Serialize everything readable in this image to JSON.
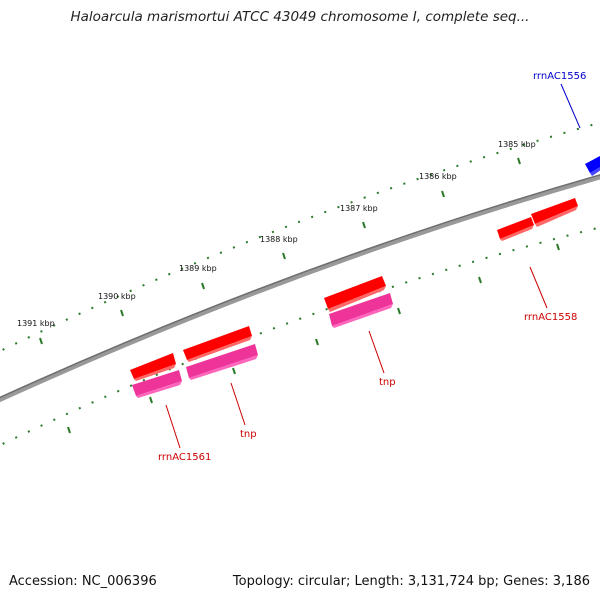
{
  "title": "Haloarcula marismortui ATCC 43049 chromosome I, complete seq...",
  "footer": {
    "accession": "Accession: NC_006396",
    "summary": "Topology: circular; Length: 3,131,724 bp; Genes: 3,186"
  },
  "scale": {
    "tick_color": "#2a7a2a",
    "labels": [
      "1391 kbp",
      "1390 kbp",
      "1389 kbp",
      "1388 kbp",
      "1387 kbp",
      "1386 kbp",
      "1385 kbp"
    ]
  },
  "colors": {
    "backbone": "#7a7a7a",
    "gene": "#ff0000",
    "gene_product": "#ee3399",
    "rrna_feature": "#0000ff",
    "label_red": "#cc0000",
    "label_blue": "#0000cc"
  },
  "features": [
    {
      "name": "rrnAC1556",
      "color": "blue"
    },
    {
      "name": "rrnAC1558",
      "color": "red"
    },
    {
      "name": "tnp",
      "color": "red"
    },
    {
      "name": "tnp",
      "color": "red"
    },
    {
      "name": "rrnAC1561",
      "color": "red"
    }
  ]
}
